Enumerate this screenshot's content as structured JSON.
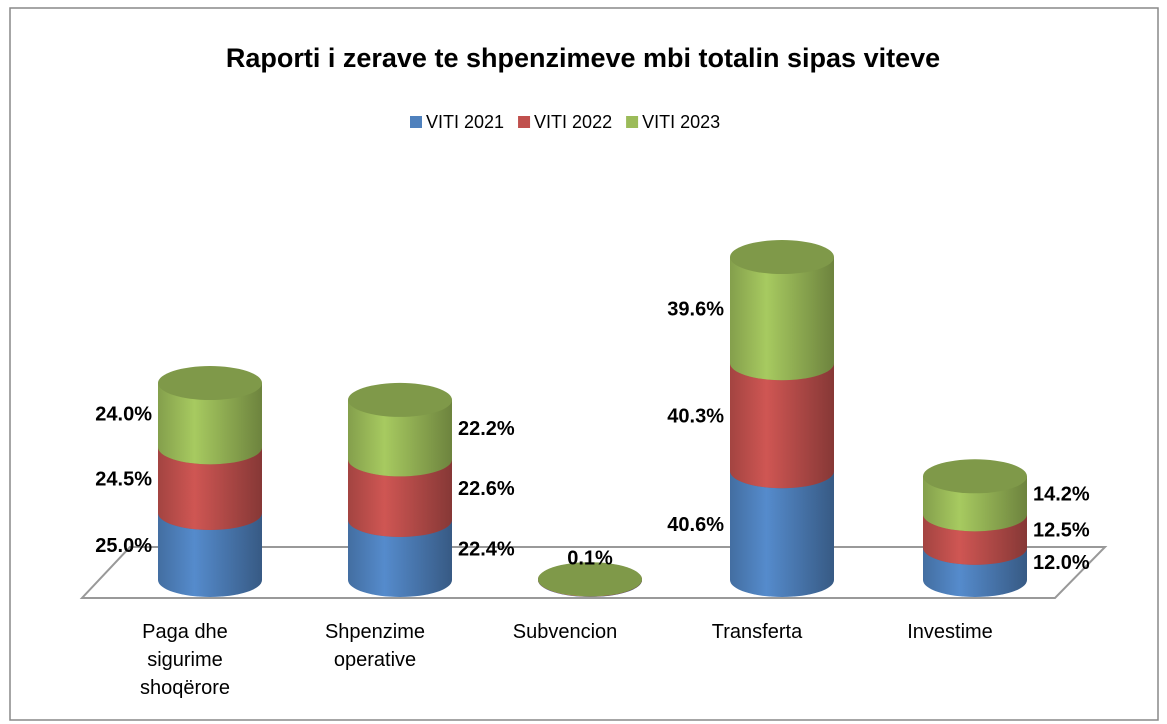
{
  "chart_data": {
    "type": "cylinder-stacked",
    "title": "Raporti i zerave te shpenzimeve mbi totalin  sipas viteve",
    "categories": [
      "Paga dhe sigurime shoqërore",
      "Shpenzime operative",
      "Subvencion",
      "Transferta",
      "Investime"
    ],
    "series": [
      {
        "name": "VITI 2021",
        "color": "#4f81bd",
        "values": [
          25.0,
          22.4,
          0.1,
          40.6,
          12.0
        ],
        "value_labels": [
          "25.0%",
          "22.4%",
          null,
          "40.6%",
          "12.0%"
        ]
      },
      {
        "name": "VITI 2022",
        "color": "#c0504d",
        "values": [
          24.5,
          22.6,
          0.1,
          40.3,
          12.5
        ],
        "value_labels": [
          "24.5%",
          "22.6%",
          null,
          "40.3%",
          "12.5%"
        ]
      },
      {
        "name": "VITI 2023",
        "color": "#9bbb59",
        "values": [
          24.0,
          22.2,
          0.1,
          39.6,
          14.2
        ],
        "value_labels": [
          "24.0%",
          "22.2%",
          "0.1%",
          "39.6%",
          "14.2%"
        ]
      }
    ],
    "legend": "top"
  }
}
